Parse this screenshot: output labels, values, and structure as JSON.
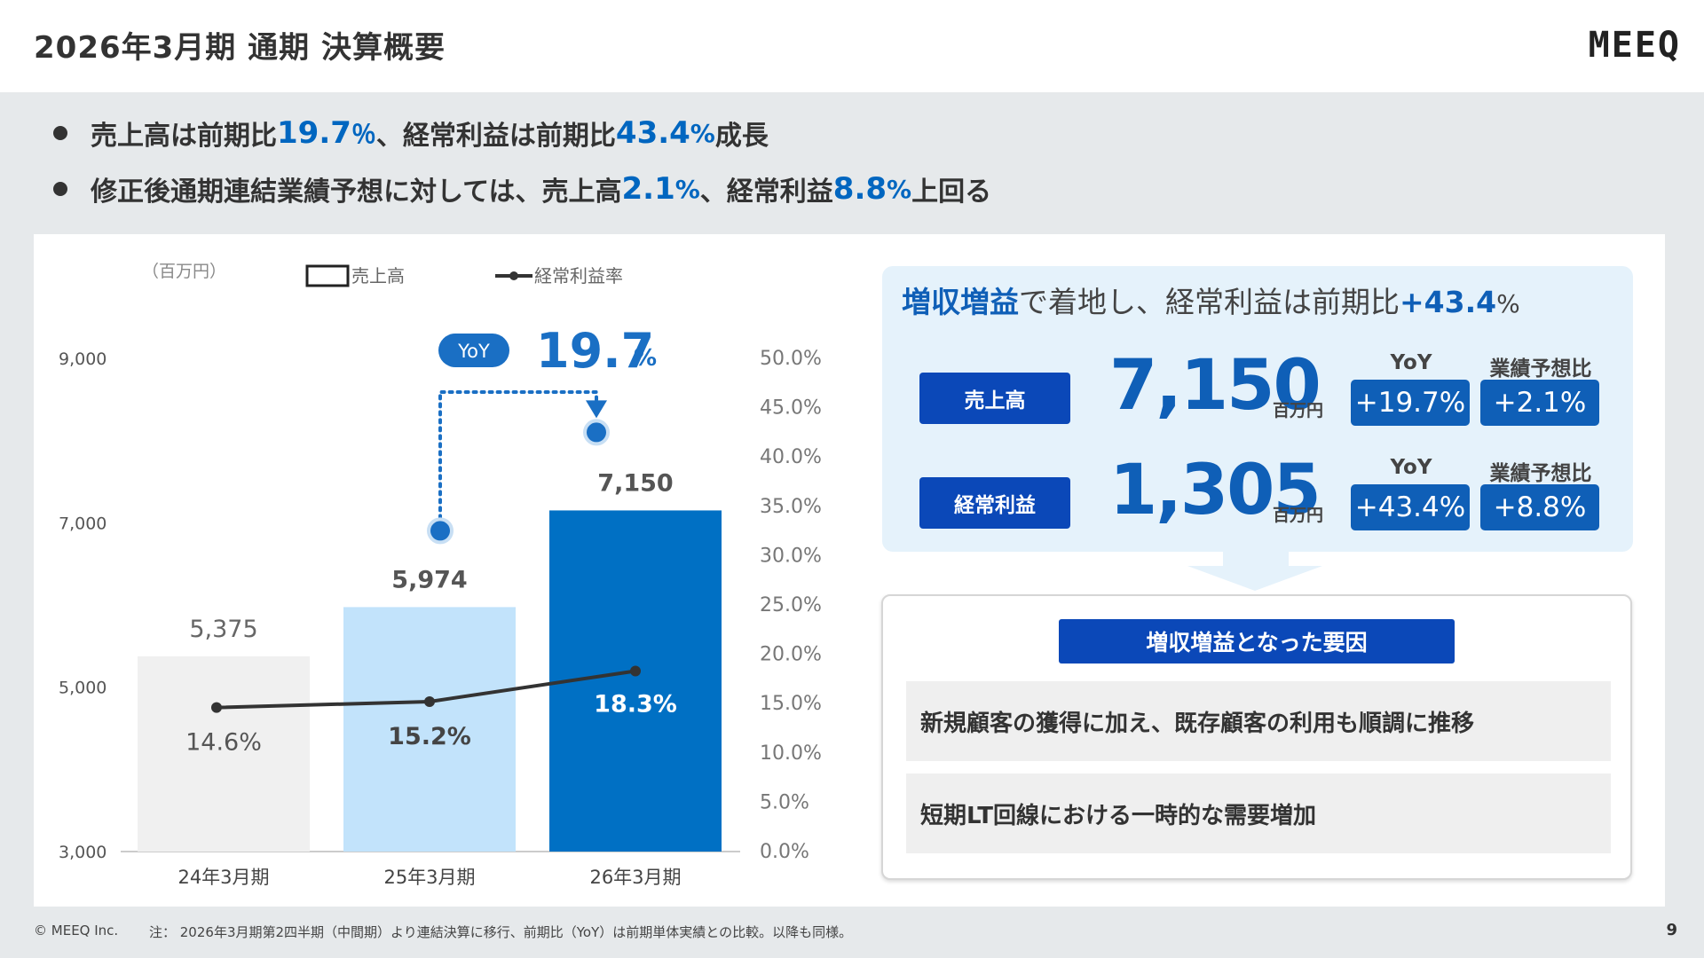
{
  "header": {
    "title": "2026年3月期 通期 決算概要",
    "logo": "MEEQ"
  },
  "bullets": [
    {
      "parts": [
        "売上高は前期比",
        "19.7",
        "％",
        " 、経常利益は前期比",
        "43.4",
        "%",
        "成長"
      ]
    },
    {
      "parts": [
        "修正後通期連結業績予想に対しては、売上高",
        "2.1",
        "%",
        "、経常利益",
        "8.8",
        "%",
        "上回る"
      ]
    }
  ],
  "chart_data": {
    "type": "bar",
    "unit_label": "（百万円）",
    "legend": [
      {
        "name": "売上高",
        "kind": "bar"
      },
      {
        "name": "経常利益率",
        "kind": "line"
      }
    ],
    "categories": [
      "24年3月期",
      "25年3月期",
      "26年3月期"
    ],
    "series": [
      {
        "name": "売上高",
        "values": [
          5375,
          5974,
          7150
        ],
        "labels": [
          "5,375",
          "5,974",
          "7,150"
        ],
        "colors": [
          "#f0f0f0",
          "#c2e3fb",
          "#0070c4"
        ]
      },
      {
        "name": "経常利益率",
        "values": [
          14.6,
          15.2,
          18.3
        ],
        "labels": [
          "14.6%",
          "15.2%",
          "18.3%"
        ],
        "color": "#333333"
      }
    ],
    "y_left": {
      "ticks": [
        3000,
        5000,
        7000,
        9000
      ],
      "tick_labels": [
        "3,000",
        "5,000",
        "7,000",
        "9,000"
      ],
      "range": [
        3000,
        9000
      ]
    },
    "y_right": {
      "ticks": [
        0,
        5,
        10,
        15,
        20,
        25,
        30,
        35,
        40,
        45,
        50
      ],
      "tick_labels": [
        "0.0%",
        "5.0%",
        "10.0%",
        "15.0%",
        "20.0%",
        "25.0%",
        "30.0%",
        "35.0%",
        "40.0%",
        "45.0%",
        "50.0%"
      ],
      "range": [
        0,
        50
      ]
    },
    "yoy_annotation": {
      "badge": "YoY",
      "value": "19.7",
      "unit": "%"
    },
    "grid": false
  },
  "summary": {
    "headline_strong": "増収増益",
    "headline_rest": "で着地し、経常利益は前期比",
    "headline_value": "+43.4",
    "headline_unit": "%",
    "col_yoy": "YoY",
    "col_forecast": "業績予想比",
    "rows": [
      {
        "label": "売上高",
        "value": "7,150",
        "unit": "百万円",
        "yoy": "+19.7%",
        "forecast": "+2.1%"
      },
      {
        "label": "経常利益",
        "value": "1,305",
        "unit": "百万円",
        "yoy": "+43.4%",
        "forecast": "+8.8%"
      }
    ]
  },
  "factors": {
    "title": "増収増益となった要因",
    "items": [
      "新規顧客の獲得に加え、既存顧客の利用も順調に推移",
      "短期LT回線における一時的な需要増加"
    ]
  },
  "colors": {
    "accent": "#0f5fb7",
    "label_bg": "#0b48b8",
    "summary_bg": "#e5f2fb"
  },
  "footer": {
    "copyright": "© MEEQ Inc.",
    "note": "注： 2026年3月期第2四半期（中間期）より連結決算に移行、前期比（YoY）は前期単体実績との比較。以降も同様。",
    "page": "9"
  }
}
